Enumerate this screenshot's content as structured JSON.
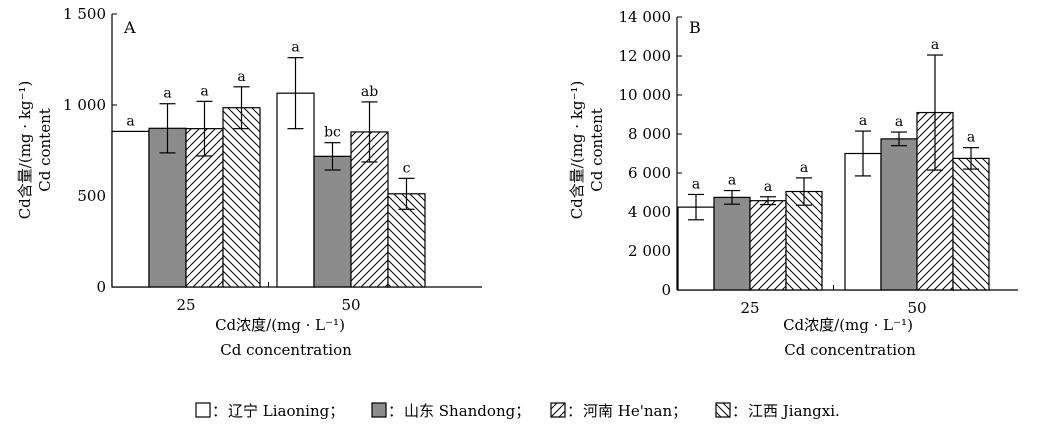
{
  "colors": {
    "liaoning": "#ffffff",
    "shandong": "#8c8c8c",
    "henan_pattern": "diagonal-hatch-forward",
    "jiangxi_pattern": "diagonal-hatch-backward",
    "stroke": "#000000"
  },
  "legend": {
    "sep": "：",
    "items": [
      {
        "label": "辽宁 Liaoning；",
        "pattern": "white"
      },
      {
        "label": "山东 Shandong；",
        "pattern": "gray"
      },
      {
        "label": "河南 He'nan；",
        "pattern": "hatch-forward"
      },
      {
        "label": "江西 Jiangxi.",
        "pattern": "hatch-backward"
      }
    ]
  },
  "chart_data": [
    {
      "type": "bar",
      "panel": "A",
      "categories": [
        "25",
        "50"
      ],
      "ylim": [
        0,
        1500
      ],
      "yticks": [
        0,
        500,
        1000,
        1500
      ],
      "ytick_labels": [
        "0",
        "500",
        "1 000",
        "1 500"
      ],
      "ylabel": "Cd含量/(mg · kg⁻¹)",
      "ylabel2": "Cd content",
      "xlabel": "Cd浓度/(mg · L⁻¹)",
      "xlabel2": "Cd concentration",
      "series": [
        {
          "name": "辽宁 Liaoning",
          "values": [
            855,
            1065
          ],
          "errors": [
            0,
            195
          ],
          "letters": [
            "a",
            "a"
          ]
        },
        {
          "name": "山东 Shandong",
          "values": [
            872,
            718
          ],
          "errors": [
            135,
            75
          ],
          "letters": [
            "a",
            "bc"
          ]
        },
        {
          "name": "河南 He'nan",
          "values": [
            870,
            852
          ],
          "errors": [
            150,
            165
          ],
          "letters": [
            "a",
            "ab"
          ]
        },
        {
          "name": "江西 Jiangxi",
          "values": [
            985,
            512
          ],
          "errors": [
            115,
            85
          ],
          "letters": [
            "a",
            "c"
          ]
        }
      ]
    },
    {
      "type": "bar",
      "panel": "B",
      "categories": [
        "25",
        "50"
      ],
      "ylim": [
        0,
        14000
      ],
      "yticks": [
        0,
        2000,
        4000,
        6000,
        8000,
        10000,
        12000,
        14000
      ],
      "ytick_labels": [
        "0",
        "2 000",
        "4 000",
        "6 000",
        "8 000",
        "10 000",
        "12 000",
        "14 000"
      ],
      "ylabel": "Cd含量/(mg · kg⁻¹)",
      "ylabel2": "Cd content",
      "xlabel": "Cd浓度/(mg · L⁻¹)",
      "xlabel2": "Cd concentration",
      "series": [
        {
          "name": "辽宁 Liaoning",
          "values": [
            4250,
            7000
          ],
          "errors": [
            650,
            1150
          ],
          "letters": [
            "a",
            "a"
          ]
        },
        {
          "name": "山东 Shandong",
          "values": [
            4750,
            7750
          ],
          "errors": [
            350,
            350
          ],
          "letters": [
            "a",
            "a"
          ]
        },
        {
          "name": "河南 He'nan",
          "values": [
            4580,
            9100
          ],
          "errors": [
            200,
            2950
          ],
          "letters": [
            "a",
            "a"
          ]
        },
        {
          "name": "江西 Jiangxi",
          "values": [
            5050,
            6750
          ],
          "errors": [
            700,
            550
          ],
          "letters": [
            "a",
            "a"
          ]
        }
      ]
    }
  ]
}
